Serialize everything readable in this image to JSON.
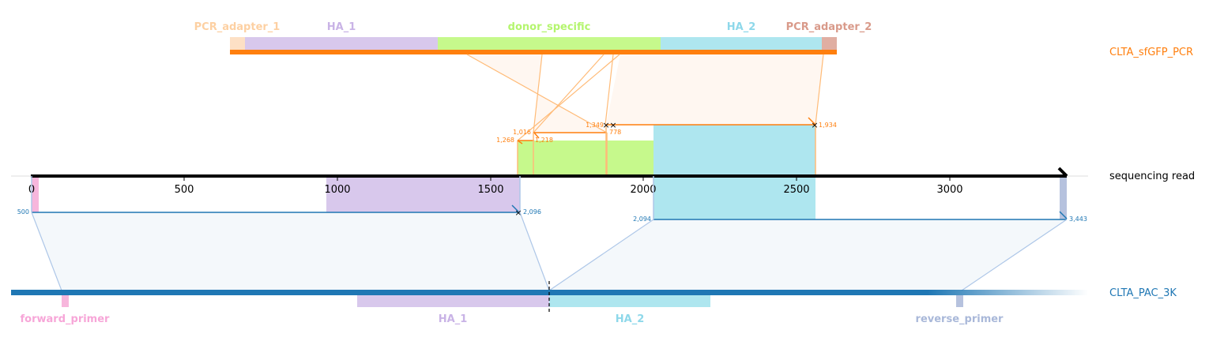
{
  "donor": {
    "name": "CLTA_sfGFP_PCR",
    "color": "#ff7f0e",
    "features": [
      {
        "label": "PCR_adapter_1",
        "color": "#fdd0a2"
      },
      {
        "label": "HA_1",
        "color": "#c9b3e6"
      },
      {
        "label": "donor_specific",
        "color": "#b4f56e"
      },
      {
        "label": "HA_2",
        "color": "#8ed8ea"
      },
      {
        "label": "PCR_adapter_2",
        "color": "#d99a8a"
      }
    ],
    "alignment_coords": [
      "1,268",
      "1,218",
      "1,016",
      "778",
      "1,349",
      "1,934"
    ]
  },
  "read": {
    "name": "sequencing read",
    "axis_ticks": [
      "0",
      "500",
      "1000",
      "1500",
      "2000",
      "2500",
      "3000"
    ],
    "alignment_coords": [
      "500",
      "2,096",
      "2,094",
      "3,443"
    ]
  },
  "target": {
    "name": "CLTA_PAC_3K",
    "color": "#1f77b4",
    "features": [
      {
        "label": "forward_primer",
        "color": "#f7a6d8"
      },
      {
        "label": "HA_1",
        "color": "#c9b3e6"
      },
      {
        "label": "HA_2",
        "color": "#8ed8ea"
      },
      {
        "label": "reverse_primer",
        "color": "#a9b8d9"
      }
    ]
  }
}
